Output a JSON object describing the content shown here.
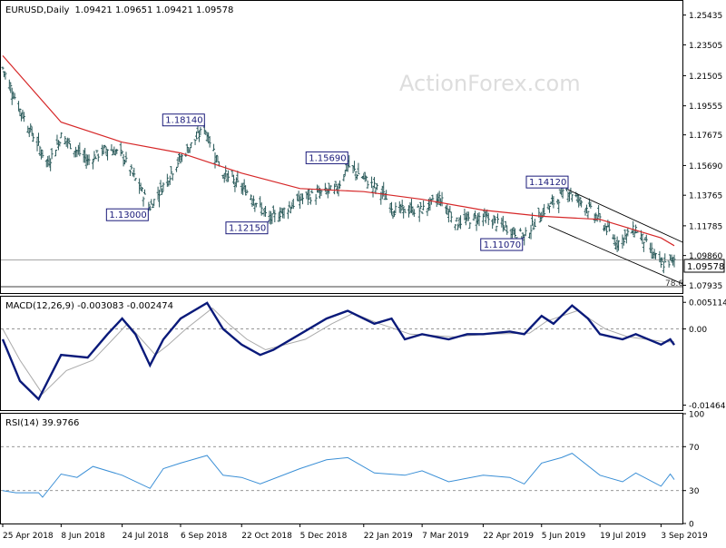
{
  "header": {
    "symbol_label": "EURUSD,Daily",
    "ohlc_label": "1.09421 1.09651 1.09421 1.09578"
  },
  "watermark": "ActionForex.com",
  "colors": {
    "bars": "#2a5a5a",
    "sma": "#d62728",
    "macd_main": "#0a1a7a",
    "macd_signal": "#aaaaaa",
    "rsi": "#3a8fd6",
    "trend": "#000000",
    "level": "#999999",
    "grid_dash": "#888888"
  },
  "chart_data": [
    {
      "type": "ohlc",
      "title": "EURUSD,Daily",
      "ohlc": {
        "open": 1.09421,
        "high": 1.09651,
        "low": 1.09421,
        "close": 1.09578
      },
      "ylim": [
        1.0743,
        1.2635
      ],
      "yticks": [
        "1.25435",
        "1.23505",
        "1.21505",
        "1.19555",
        "1.17675",
        "1.15690",
        "1.13765",
        "1.11785",
        "1.09860",
        "1.07935"
      ],
      "current_price": "1.09578",
      "x_labels": [
        "25 Apr 2018",
        "8 Jun 2018",
        "24 Jul 2018",
        "6 Sep 2018",
        "22 Oct 2018",
        "5 Dec 2018",
        "22 Jan 2019",
        "7 Mar 2019",
        "22 Apr 2019",
        "5 Jun 2019",
        "19 Jul 2019",
        "3 Sep 2019"
      ],
      "price_path": [
        [
          "25 Apr 2018",
          1.22
        ],
        [
          "8 May 2018",
          1.193
        ],
        [
          "29 May 2018",
          1.158
        ],
        [
          "8 Jun 2018",
          1.176
        ],
        [
          "28 Jun 2018",
          1.16
        ],
        [
          "13 Jul 2018",
          1.168
        ],
        [
          "24 Jul 2018",
          1.164
        ],
        [
          "14 Aug 2018",
          1.13
        ],
        [
          "3 Sep 2018",
          1.158
        ],
        [
          "24 Sep 2018",
          1.1814
        ],
        [
          "8 Oct 2018",
          1.152
        ],
        [
          "29 Oct 2018",
          1.138
        ],
        [
          "12 Nov 2018",
          1.1215
        ],
        [
          "5 Dec 2018",
          1.135
        ],
        [
          "2 Jan 2019",
          1.142
        ],
        [
          "10 Jan 2019",
          1.1569
        ],
        [
          "5 Feb 2019",
          1.139
        ],
        [
          "14 Feb 2019",
          1.128
        ],
        [
          "7 Mar 2019",
          1.128
        ],
        [
          "20 Mar 2019",
          1.136
        ],
        [
          "2 Apr 2019",
          1.12
        ],
        [
          "22 Apr 2019",
          1.124
        ],
        [
          "23 May 2019",
          1.1107
        ],
        [
          "5 Jun 2019",
          1.126
        ],
        [
          "25 Jun 2019",
          1.1412
        ],
        [
          "19 Jul 2019",
          1.122
        ],
        [
          "1 Aug 2019",
          1.107
        ],
        [
          "15 Aug 2019",
          1.116
        ],
        [
          "3 Sep 2019",
          1.0926
        ],
        [
          "13 Sep 2019",
          1.0958
        ]
      ],
      "sma_path": [
        [
          "25 Apr 2018",
          1.228
        ],
        [
          "8 Jun 2018",
          1.185
        ],
        [
          "24 Jul 2018",
          1.172
        ],
        [
          "6 Sep 2018",
          1.165
        ],
        [
          "22 Oct 2018",
          1.152
        ],
        [
          "5 Dec 2018",
          1.142
        ],
        [
          "22 Jan 2019",
          1.14
        ],
        [
          "7 Mar 2019",
          1.135
        ],
        [
          "22 Apr 2019",
          1.128
        ],
        [
          "5 Jun 2019",
          1.124
        ],
        [
          "19 Jul 2019",
          1.122
        ],
        [
          "3 Sep 2019",
          1.11
        ],
        [
          "13 Sep 2019",
          1.105
        ]
      ],
      "callouts": [
        {
          "label": "1.18140",
          "date": "24 Sep 2018",
          "value": 1.1814,
          "position": "above"
        },
        {
          "label": "1.13000",
          "date": "14 Aug 2018",
          "value": 1.13,
          "position": "below"
        },
        {
          "label": "1.15690",
          "date": "10 Jan 2019",
          "value": 1.1569,
          "position": "above"
        },
        {
          "label": "1.12150",
          "date": "12 Nov 2018",
          "value": 1.1215,
          "position": "below"
        },
        {
          "label": "1.14120",
          "date": "25 Jun 2019",
          "value": 1.1412,
          "position": "above"
        },
        {
          "label": "1.11070",
          "date": "23 May 2019",
          "value": 1.1107,
          "position": "below"
        }
      ],
      "channel": [
        {
          "from": [
            "25 Jun 2019",
            1.1412
          ],
          "to": [
            "13 Sep 2019",
            1.107
          ]
        },
        {
          "from": [
            "10 Jun 2019",
            1.118
          ],
          "to": [
            "13 Sep 2019",
            1.08
          ]
        }
      ],
      "level_annotation": "78.6",
      "level_value": 1.0925
    },
    {
      "type": "line",
      "title": "MACD(12,26,9) -0.003083 -0.002474",
      "ylim": [
        -0.0156,
        0.0062
      ],
      "yticks": [
        "0.005114",
        "0.00",
        "-0.014647"
      ],
      "zero_line": 0,
      "series": [
        {
          "role": "main",
          "points": [
            [
              "25 Apr 2018",
              -0.002
            ],
            [
              "8 May 2018",
              -0.01
            ],
            [
              "22 May 2018",
              -0.0135
            ],
            [
              "8 Jun 2018",
              -0.005
            ],
            [
              "28 Jun 2018",
              -0.0055
            ],
            [
              "13 Jul 2018",
              -0.001
            ],
            [
              "24 Jul 2018",
              0.002
            ],
            [
              "3 Aug 2018",
              -0.001
            ],
            [
              "14 Aug 2018",
              -0.007
            ],
            [
              "24 Aug 2018",
              -0.002
            ],
            [
              "6 Sep 2018",
              0.002
            ],
            [
              "26 Sep 2018",
              0.005
            ],
            [
              "8 Oct 2018",
              0.0
            ],
            [
              "22 Oct 2018",
              -0.003
            ],
            [
              "5 Nov 2018",
              -0.005
            ],
            [
              "15 Nov 2018",
              -0.004
            ],
            [
              "5 Dec 2018",
              -0.001
            ],
            [
              "25 Dec 2018",
              0.002
            ],
            [
              "10 Jan 2019",
              0.0035
            ],
            [
              "30 Jan 2019",
              0.001
            ],
            [
              "12 Feb 2019",
              0.002
            ],
            [
              "22 Feb 2019",
              -0.002
            ],
            [
              "7 Mar 2019",
              -0.001
            ],
            [
              "27 Mar 2019",
              -0.002
            ],
            [
              "10 Apr 2019",
              -0.001
            ],
            [
              "22 Apr 2019",
              -0.001
            ],
            [
              "12 May 2019",
              -0.0005
            ],
            [
              "23 May 2019",
              -0.001
            ],
            [
              "5 Jun 2019",
              0.0025
            ],
            [
              "14 Jun 2019",
              0.001
            ],
            [
              "28 Jun 2019",
              0.0045
            ],
            [
              "10 Jul 2019",
              0.002
            ],
            [
              "19 Jul 2019",
              -0.001
            ],
            [
              "5 Aug 2019",
              -0.002
            ],
            [
              "15 Aug 2019",
              -0.001
            ],
            [
              "3 Sep 2019",
              -0.003
            ],
            [
              "10 Sep 2019",
              -0.002
            ],
            [
              "13 Sep 2019",
              -0.003083
            ]
          ]
        },
        {
          "role": "signal",
          "points": [
            [
              "25 Apr 2018",
              0.0
            ],
            [
              "8 May 2018",
              -0.006
            ],
            [
              "25 May 2018",
              -0.0125
            ],
            [
              "12 Jun 2018",
              -0.008
            ],
            [
              "2 Jul 2018",
              -0.006
            ],
            [
              "17 Jul 2018",
              -0.002
            ],
            [
              "28 Jul 2018",
              0.001
            ],
            [
              "18 Aug 2018",
              -0.005
            ],
            [
              "28 Aug 2018",
              -0.003
            ],
            [
              "10 Sep 2018",
              0.0
            ],
            [
              "30 Sep 2018",
              0.004
            ],
            [
              "12 Oct 2018",
              0.001
            ],
            [
              "26 Oct 2018",
              -0.002
            ],
            [
              "9 Nov 2018",
              -0.004
            ],
            [
              "9 Dec 2018",
              -0.002
            ],
            [
              "29 Dec 2018",
              0.001
            ],
            [
              "14 Jan 2019",
              0.003
            ],
            [
              "3 Feb 2019",
              0.001
            ],
            [
              "26 Feb 2019",
              -0.001
            ],
            [
              "31 Mar 2019",
              -0.0015
            ],
            [
              "26 Apr 2019",
              -0.001
            ],
            [
              "27 May 2019",
              -0.0008
            ],
            [
              "9 Jun 2019",
              0.0015
            ],
            [
              "2 Jul 2019",
              0.0035
            ],
            [
              "23 Jul 2019",
              0.0
            ],
            [
              "9 Aug 2019",
              -0.0015
            ],
            [
              "7 Sep 2019",
              -0.0025
            ],
            [
              "13 Sep 2019",
              -0.002474
            ]
          ]
        }
      ]
    },
    {
      "type": "line",
      "title": "RSI(14) 39.9766",
      "ylim": [
        0,
        100
      ],
      "yticks": [
        "100",
        "70",
        "30",
        "0"
      ],
      "levels": [
        70,
        30
      ],
      "series": [
        {
          "role": "rsi",
          "points": [
            [
              "25 Apr 2018",
              30
            ],
            [
              "5 May 2018",
              28
            ],
            [
              "22 May 2018",
              28
            ],
            [
              "25 May 2018",
              24
            ],
            [
              "8 Jun 2018",
              45
            ],
            [
              "20 Jun 2018",
              42
            ],
            [
              "2 Jul 2018",
              52
            ],
            [
              "24 Jul 2018",
              44
            ],
            [
              "14 Aug 2018",
              32
            ],
            [
              "24 Aug 2018",
              50
            ],
            [
              "6 Sep 2018",
              55
            ],
            [
              "26 Sep 2018",
              62
            ],
            [
              "8 Oct 2018",
              44
            ],
            [
              "22 Oct 2018",
              42
            ],
            [
              "5 Nov 2018",
              36
            ],
            [
              "5 Dec 2018",
              50
            ],
            [
              "25 Dec 2018",
              58
            ],
            [
              "10 Jan 2019",
              60
            ],
            [
              "30 Jan 2019",
              46
            ],
            [
              "22 Feb 2019",
              44
            ],
            [
              "7 Mar 2019",
              48
            ],
            [
              "27 Mar 2019",
              38
            ],
            [
              "22 Apr 2019",
              44
            ],
            [
              "12 May 2019",
              42
            ],
            [
              "23 May 2019",
              36
            ],
            [
              "5 Jun 2019",
              55
            ],
            [
              "20 Jun 2019",
              60
            ],
            [
              "28 Jun 2019",
              64
            ],
            [
              "19 Jul 2019",
              44
            ],
            [
              "5 Aug 2019",
              38
            ],
            [
              "15 Aug 2019",
              46
            ],
            [
              "3 Sep 2019",
              34
            ],
            [
              "10 Sep 2019",
              45
            ],
            [
              "13 Sep 2019",
              39.9766
            ]
          ]
        }
      ]
    }
  ]
}
